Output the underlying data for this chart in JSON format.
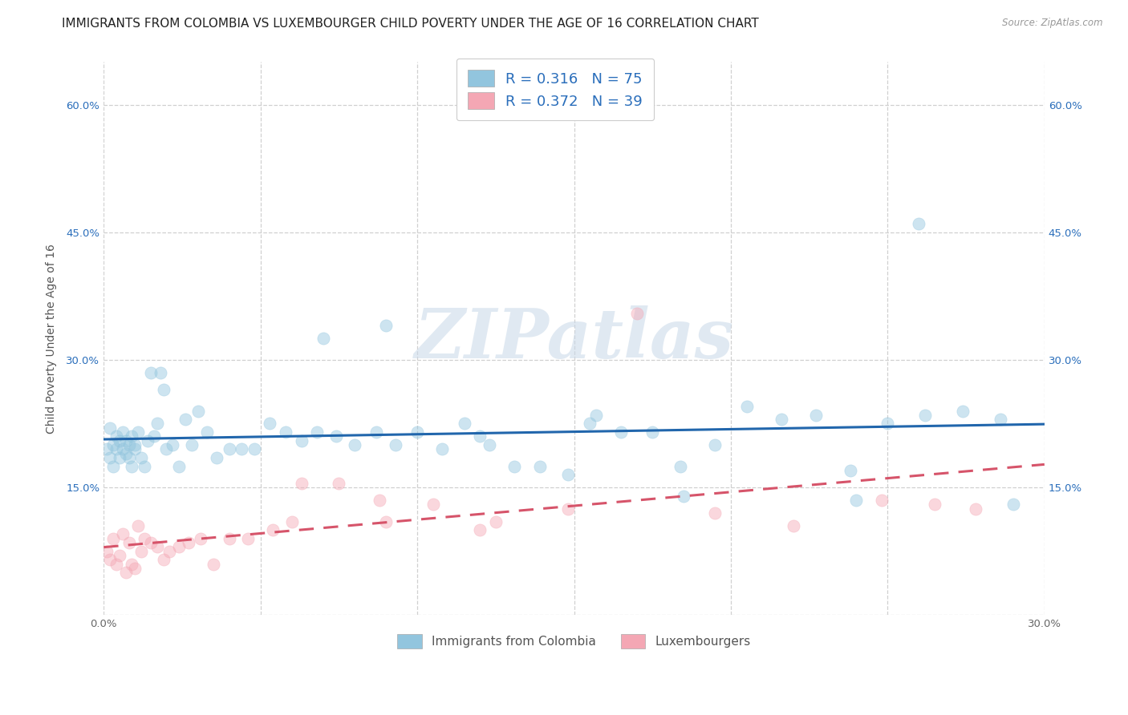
{
  "title": "IMMIGRANTS FROM COLOMBIA VS LUXEMBOURGER CHILD POVERTY UNDER THE AGE OF 16 CORRELATION CHART",
  "source": "Source: ZipAtlas.com",
  "ylabel": "Child Poverty Under the Age of 16",
  "xlim": [
    0.0,
    0.3
  ],
  "ylim": [
    0.0,
    0.65
  ],
  "xticks": [
    0.0,
    0.05,
    0.1,
    0.15,
    0.2,
    0.25,
    0.3
  ],
  "yticks": [
    0.0,
    0.15,
    0.3,
    0.45,
    0.6
  ],
  "colombia_color": "#92c5de",
  "colombia_line_color": "#2166ac",
  "luxembourger_color": "#f4a7b4",
  "luxembourger_line_color": "#d6546a",
  "colombia_R": "0.316",
  "colombia_N": "75",
  "luxembourger_R": "0.372",
  "luxembourger_N": "39",
  "legend_label_colombia": "R = 0.316   N = 75",
  "legend_label_luxembourger": "R = 0.372   N = 39",
  "watermark": "ZIPatlas",
  "colombia_x": [
    0.001,
    0.002,
    0.002,
    0.003,
    0.003,
    0.004,
    0.004,
    0.005,
    0.005,
    0.006,
    0.006,
    0.007,
    0.007,
    0.008,
    0.008,
    0.009,
    0.009,
    0.01,
    0.01,
    0.011,
    0.012,
    0.013,
    0.014,
    0.015,
    0.016,
    0.017,
    0.018,
    0.019,
    0.02,
    0.022,
    0.024,
    0.026,
    0.028,
    0.03,
    0.033,
    0.036,
    0.04,
    0.044,
    0.048,
    0.053,
    0.058,
    0.063,
    0.068,
    0.074,
    0.08,
    0.087,
    0.093,
    0.1,
    0.108,
    0.115,
    0.123,
    0.131,
    0.139,
    0.148,
    0.157,
    0.165,
    0.175,
    0.184,
    0.195,
    0.205,
    0.216,
    0.227,
    0.238,
    0.25,
    0.262,
    0.274,
    0.286,
    0.26,
    0.185,
    0.24,
    0.155,
    0.12,
    0.09,
    0.07,
    0.29
  ],
  "colombia_y": [
    0.195,
    0.22,
    0.185,
    0.2,
    0.175,
    0.21,
    0.195,
    0.205,
    0.185,
    0.195,
    0.215,
    0.205,
    0.19,
    0.2,
    0.185,
    0.175,
    0.21,
    0.195,
    0.2,
    0.215,
    0.185,
    0.175,
    0.205,
    0.285,
    0.21,
    0.225,
    0.285,
    0.265,
    0.195,
    0.2,
    0.175,
    0.23,
    0.2,
    0.24,
    0.215,
    0.185,
    0.195,
    0.195,
    0.195,
    0.225,
    0.215,
    0.205,
    0.215,
    0.21,
    0.2,
    0.215,
    0.2,
    0.215,
    0.195,
    0.225,
    0.2,
    0.175,
    0.175,
    0.165,
    0.235,
    0.215,
    0.215,
    0.175,
    0.2,
    0.245,
    0.23,
    0.235,
    0.17,
    0.225,
    0.235,
    0.24,
    0.23,
    0.46,
    0.14,
    0.135,
    0.225,
    0.21,
    0.34,
    0.325,
    0.13
  ],
  "luxembourger_x": [
    0.001,
    0.002,
    0.003,
    0.004,
    0.005,
    0.006,
    0.007,
    0.008,
    0.009,
    0.01,
    0.011,
    0.012,
    0.013,
    0.015,
    0.017,
    0.019,
    0.021,
    0.024,
    0.027,
    0.031,
    0.035,
    0.04,
    0.046,
    0.054,
    0.063,
    0.075,
    0.088,
    0.105,
    0.125,
    0.148,
    0.17,
    0.195,
    0.22,
    0.248,
    0.265,
    0.278,
    0.12,
    0.09,
    0.06
  ],
  "luxembourger_y": [
    0.075,
    0.065,
    0.09,
    0.06,
    0.07,
    0.095,
    0.05,
    0.085,
    0.06,
    0.055,
    0.105,
    0.075,
    0.09,
    0.085,
    0.08,
    0.065,
    0.075,
    0.08,
    0.085,
    0.09,
    0.06,
    0.09,
    0.09,
    0.1,
    0.155,
    0.155,
    0.135,
    0.13,
    0.11,
    0.125,
    0.355,
    0.12,
    0.105,
    0.135,
    0.13,
    0.125,
    0.1,
    0.11,
    0.11
  ],
  "background_color": "#ffffff",
  "grid_color": "#d0d0d0",
  "title_fontsize": 11,
  "axis_fontsize": 10,
  "tick_fontsize": 9.5,
  "scatter_size": 120,
  "scatter_alpha": 0.45,
  "legend_text_color": "#2a6ebb",
  "bottom_legend_colombia": "Immigrants from Colombia",
  "bottom_legend_luxembourger": "Luxembourgers"
}
